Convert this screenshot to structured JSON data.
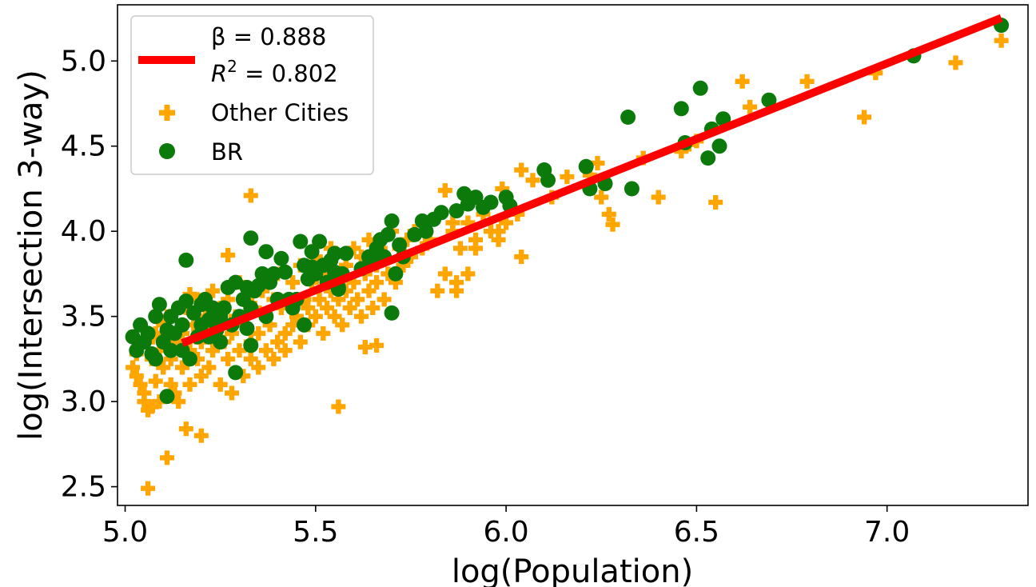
{
  "chart_data": {
    "type": "scatter",
    "xlabel": "log(Population)",
    "ylabel": "log(Intersection 3-way)",
    "xlim": [
      4.98,
      7.37
    ],
    "ylim": [
      2.39,
      5.33
    ],
    "xticks": [
      "5.0",
      "5.5",
      "6.0",
      "6.5",
      "7.0"
    ],
    "yticks": [
      "2.5",
      "3.0",
      "3.5",
      "4.0",
      "4.5",
      "5.0"
    ],
    "legend_position": "top-left",
    "fit": {
      "beta_label": "β = 0.888",
      "r2_label_base": "R",
      "r2_label_sup": "2",
      "r2_label_rest": " = 0.802",
      "color": "#ff0000",
      "x_start": 5.15,
      "x_end": 7.3,
      "slope": 0.888,
      "intercept": -1.23
    },
    "series": [
      {
        "name": "Other Cities",
        "marker": "plus",
        "color": "#ffa500",
        "points": [
          [
            5.02,
            3.2
          ],
          [
            5.03,
            3.28
          ],
          [
            5.03,
            3.15
          ],
          [
            5.04,
            3.1
          ],
          [
            5.04,
            3.32
          ],
          [
            5.05,
            3.05
          ],
          [
            5.05,
            3.0
          ],
          [
            5.06,
            2.95
          ],
          [
            5.06,
            3.35
          ],
          [
            5.07,
            3.25
          ],
          [
            5.07,
            2.97
          ],
          [
            5.08,
            3.4
          ],
          [
            5.08,
            3.12
          ],
          [
            5.09,
            3.3
          ],
          [
            5.09,
            3.0
          ],
          [
            5.1,
            3.2
          ],
          [
            5.1,
            3.45
          ],
          [
            5.11,
            3.5
          ],
          [
            5.12,
            3.25
          ],
          [
            5.12,
            3.1
          ],
          [
            5.13,
            3.35
          ],
          [
            5.13,
            3.05
          ],
          [
            5.14,
            3.0
          ],
          [
            5.15,
            3.4
          ],
          [
            5.15,
            3.2
          ],
          [
            5.16,
            3.55
          ],
          [
            5.17,
            3.3
          ],
          [
            5.17,
            3.1
          ],
          [
            5.18,
            3.45
          ],
          [
            5.19,
            3.25
          ],
          [
            5.19,
            3.6
          ],
          [
            5.2,
            3.35
          ],
          [
            5.2,
            3.15
          ],
          [
            5.21,
            3.5
          ],
          [
            5.22,
            3.4
          ],
          [
            5.22,
            3.2
          ],
          [
            5.23,
            3.3
          ],
          [
            5.23,
            3.65
          ],
          [
            5.24,
            3.45
          ],
          [
            5.25,
            3.1
          ],
          [
            5.25,
            3.55
          ],
          [
            5.26,
            3.35
          ],
          [
            5.27,
            3.25
          ],
          [
            5.27,
            3.6
          ],
          [
            5.28,
            3.05
          ],
          [
            5.28,
            3.4
          ],
          [
            5.29,
            3.5
          ],
          [
            5.3,
            3.3
          ],
          [
            5.3,
            3.7
          ],
          [
            5.31,
            3.15
          ],
          [
            5.31,
            3.45
          ],
          [
            5.32,
            3.6
          ],
          [
            5.33,
            3.35
          ],
          [
            5.33,
            3.25
          ],
          [
            5.34,
            3.55
          ],
          [
            5.35,
            3.4
          ],
          [
            5.35,
            3.2
          ],
          [
            5.36,
            3.65
          ],
          [
            5.37,
            3.5
          ],
          [
            5.37,
            3.3
          ],
          [
            5.38,
            3.45
          ],
          [
            5.39,
            3.25
          ],
          [
            5.39,
            3.6
          ],
          [
            5.4,
            3.35
          ],
          [
            5.4,
            3.75
          ],
          [
            5.41,
            3.55
          ],
          [
            5.42,
            3.4
          ],
          [
            5.42,
            3.3
          ],
          [
            5.43,
            3.6
          ],
          [
            5.44,
            3.45
          ],
          [
            5.44,
            3.7
          ],
          [
            5.45,
            3.5
          ],
          [
            5.46,
            3.35
          ],
          [
            5.46,
            3.8
          ],
          [
            5.47,
            3.6
          ],
          [
            5.48,
            3.45
          ],
          [
            5.48,
            3.55
          ],
          [
            5.49,
            3.7
          ],
          [
            5.5,
            3.5
          ],
          [
            5.5,
            3.85
          ],
          [
            5.51,
            3.6
          ],
          [
            5.52,
            3.4
          ],
          [
            5.52,
            3.75
          ],
          [
            5.53,
            3.55
          ],
          [
            5.54,
            3.65
          ],
          [
            5.54,
            3.9
          ],
          [
            5.55,
            3.5
          ],
          [
            5.56,
            3.7
          ],
          [
            5.56,
            3.6
          ],
          [
            5.57,
            3.45
          ],
          [
            5.58,
            3.8
          ],
          [
            5.58,
            3.65
          ],
          [
            5.59,
            3.55
          ],
          [
            5.6,
            3.9
          ],
          [
            5.6,
            3.7
          ],
          [
            5.61,
            3.6
          ],
          [
            5.62,
            3.5
          ],
          [
            5.62,
            3.85
          ],
          [
            5.63,
            3.75
          ],
          [
            5.64,
            3.65
          ],
          [
            5.64,
            3.95
          ],
          [
            5.65,
            3.55
          ],
          [
            5.66,
            3.8
          ],
          [
            5.66,
            3.7
          ],
          [
            5.67,
            3.9
          ],
          [
            5.68,
            3.6
          ],
          [
            5.68,
            3.85
          ],
          [
            5.69,
            3.75
          ],
          [
            5.7,
            4.0
          ],
          [
            5.71,
            3.7
          ],
          [
            5.72,
            3.9
          ],
          [
            5.73,
            3.8
          ],
          [
            5.74,
            3.95
          ],
          [
            5.75,
            3.85
          ],
          [
            5.76,
            4.0
          ],
          [
            5.78,
            3.9
          ],
          [
            5.8,
            3.95
          ],
          [
            5.82,
            3.65
          ],
          [
            5.84,
            3.75
          ],
          [
            5.86,
            4.0
          ],
          [
            5.87,
            3.7
          ],
          [
            5.88,
            3.9
          ],
          [
            5.9,
            4.05
          ],
          [
            5.92,
            3.95
          ],
          [
            5.94,
            4.1
          ],
          [
            5.96,
            4.0
          ],
          [
            5.98,
            3.95
          ],
          [
            5.99,
            4.25
          ],
          [
            6.01,
            4.15
          ],
          [
            6.03,
            4.1
          ],
          [
            5.87,
            3.65
          ],
          [
            5.9,
            3.75
          ],
          [
            5.92,
            3.9
          ],
          [
            5.98,
            4.0
          ],
          [
            6.04,
            3.85
          ],
          [
            6.0,
            4.05
          ],
          [
            5.84,
            4.24
          ],
          [
            5.86,
            4.05
          ],
          [
            6.04,
            4.36
          ],
          [
            6.07,
            4.3
          ],
          [
            6.12,
            4.2
          ],
          [
            6.16,
            4.32
          ],
          [
            6.22,
            4.33
          ],
          [
            6.24,
            4.4
          ],
          [
            6.25,
            4.2
          ],
          [
            6.27,
            4.1
          ],
          [
            6.28,
            4.04
          ],
          [
            6.36,
            4.43
          ],
          [
            6.4,
            4.2
          ],
          [
            6.46,
            4.47
          ],
          [
            6.48,
            4.51
          ],
          [
            6.5,
            4.53
          ],
          [
            6.55,
            4.17
          ],
          [
            6.62,
            4.88
          ],
          [
            6.64,
            4.73
          ],
          [
            6.79,
            4.88
          ],
          [
            6.94,
            4.67
          ],
          [
            6.97,
            4.93
          ],
          [
            7.18,
            4.99
          ],
          [
            7.3,
            5.12
          ],
          [
            5.33,
            4.21
          ],
          [
            5.17,
            3.63
          ],
          [
            5.56,
            2.97
          ],
          [
            5.2,
            2.8
          ],
          [
            5.11,
            2.67
          ],
          [
            5.06,
            2.49
          ],
          [
            5.16,
            2.84
          ],
          [
            5.63,
            3.32
          ],
          [
            5.66,
            3.33
          ],
          [
            5.27,
            3.86
          ]
        ]
      },
      {
        "name": "BR",
        "marker": "circle",
        "color": "#0b7a0b",
        "points": [
          [
            5.02,
            3.38
          ],
          [
            5.03,
            3.3
          ],
          [
            5.04,
            3.45
          ],
          [
            5.05,
            3.35
          ],
          [
            5.06,
            3.4
          ],
          [
            5.07,
            3.28
          ],
          [
            5.08,
            3.5
          ],
          [
            5.08,
            3.25
          ],
          [
            5.09,
            3.57
          ],
          [
            5.1,
            3.35
          ],
          [
            5.11,
            3.42
          ],
          [
            5.12,
            3.3
          ],
          [
            5.12,
            3.5
          ],
          [
            5.13,
            3.4
          ],
          [
            5.14,
            3.55
          ],
          [
            5.15,
            3.3
          ],
          [
            5.15,
            3.45
          ],
          [
            5.16,
            3.59
          ],
          [
            5.17,
            3.25
          ],
          [
            5.18,
            3.52
          ],
          [
            5.19,
            3.38
          ],
          [
            5.2,
            3.57
          ],
          [
            5.2,
            3.45
          ],
          [
            5.21,
            3.6
          ],
          [
            5.22,
            3.48
          ],
          [
            5.22,
            3.38
          ],
          [
            5.23,
            3.55
          ],
          [
            5.24,
            3.42
          ],
          [
            5.25,
            3.5
          ],
          [
            5.25,
            3.35
          ],
          [
            5.26,
            3.55
          ],
          [
            5.27,
            3.67
          ],
          [
            5.28,
            3.45
          ],
          [
            5.29,
            3.7
          ],
          [
            5.3,
            3.5
          ],
          [
            5.31,
            3.6
          ],
          [
            5.32,
            3.43
          ],
          [
            5.32,
            3.67
          ],
          [
            5.33,
            3.55
          ],
          [
            5.34,
            3.65
          ],
          [
            5.35,
            3.68
          ],
          [
            5.36,
            3.75
          ],
          [
            5.37,
            3.5
          ],
          [
            5.37,
            3.88
          ],
          [
            5.38,
            3.7
          ],
          [
            5.39,
            3.75
          ],
          [
            5.4,
            3.6
          ],
          [
            5.41,
            3.84
          ],
          [
            5.42,
            3.76
          ],
          [
            5.43,
            3.6
          ],
          [
            5.44,
            3.55
          ],
          [
            5.45,
            3.6
          ],
          [
            5.46,
            3.94
          ],
          [
            5.47,
            3.8
          ],
          [
            5.48,
            3.72
          ],
          [
            5.49,
            3.88
          ],
          [
            5.5,
            3.75
          ],
          [
            5.51,
            3.94
          ],
          [
            5.52,
            3.8
          ],
          [
            5.53,
            3.7
          ],
          [
            5.54,
            3.83
          ],
          [
            5.55,
            3.76
          ],
          [
            5.56,
            3.66
          ],
          [
            5.57,
            3.75
          ],
          [
            5.58,
            3.87
          ],
          [
            5.62,
            3.78
          ],
          [
            5.64,
            3.85
          ],
          [
            5.65,
            3.82
          ],
          [
            5.66,
            3.9
          ],
          [
            5.67,
            3.95
          ],
          [
            5.68,
            3.85
          ],
          [
            5.69,
            3.98
          ],
          [
            5.7,
            4.06
          ],
          [
            5.71,
            3.75
          ],
          [
            5.72,
            3.92
          ],
          [
            5.73,
            3.85
          ],
          [
            5.76,
            3.98
          ],
          [
            5.78,
            4.06
          ],
          [
            5.79,
            4.0
          ],
          [
            5.81,
            4.07
          ],
          [
            5.83,
            4.11
          ],
          [
            5.87,
            4.12
          ],
          [
            5.89,
            4.22
          ],
          [
            5.9,
            4.16
          ],
          [
            5.92,
            4.2
          ],
          [
            5.94,
            4.14
          ],
          [
            5.96,
            4.17
          ],
          [
            6.0,
            4.2
          ],
          [
            6.01,
            4.15
          ],
          [
            6.1,
            4.36
          ],
          [
            6.11,
            4.3
          ],
          [
            6.21,
            4.38
          ],
          [
            6.22,
            4.25
          ],
          [
            6.26,
            4.28
          ],
          [
            6.32,
            4.67
          ],
          [
            6.33,
            4.25
          ],
          [
            6.46,
            4.72
          ],
          [
            6.47,
            4.52
          ],
          [
            6.51,
            4.84
          ],
          [
            6.53,
            4.43
          ],
          [
            6.54,
            4.6
          ],
          [
            6.56,
            4.5
          ],
          [
            6.57,
            4.66
          ],
          [
            6.69,
            4.77
          ],
          [
            7.07,
            5.03
          ],
          [
            7.3,
            5.21
          ],
          [
            5.16,
            3.83
          ],
          [
            5.11,
            3.03
          ],
          [
            5.29,
            3.17
          ],
          [
            5.33,
            3.33
          ],
          [
            5.47,
            3.45
          ],
          [
            5.56,
            3.67
          ],
          [
            5.7,
            3.52
          ],
          [
            5.55,
            3.87
          ],
          [
            5.33,
            3.96
          ],
          [
            5.49,
            3.79
          ]
        ]
      }
    ]
  }
}
